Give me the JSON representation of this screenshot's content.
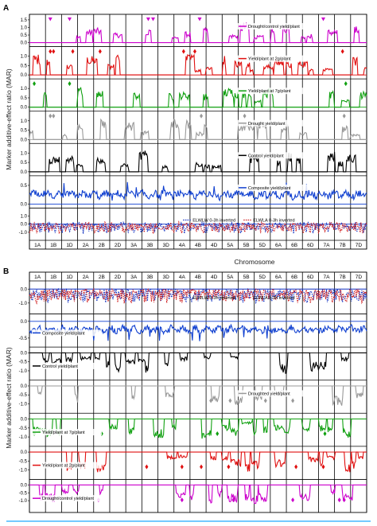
{
  "figure": {
    "panelA": "A",
    "panelB": "B",
    "ylabel": "Marker additive-effect ratio (MAR)",
    "xlabel": "Chromosome"
  },
  "chart_data": [
    {
      "type": "line",
      "panel": "A",
      "chromosomes": [
        "1A",
        "1B",
        "1D",
        "2A",
        "2B",
        "2D",
        "3A",
        "3B",
        "3D",
        "4A",
        "4B",
        "4D",
        "5A",
        "5B",
        "5D",
        "6A",
        "6B",
        "6D",
        "7A",
        "7B",
        "7D"
      ],
      "tracks": [
        {
          "name": "Drought/control yield/plant",
          "color": "#cc00cc",
          "ticks": [
            "1.5",
            "1.0",
            "0.5",
            "0.0"
          ],
          "ylim": [
            0,
            1.6
          ],
          "markers": [
            "1B",
            "1D",
            "3B",
            "3B",
            "4B",
            "7A"
          ],
          "marker_color": "#cc00cc",
          "marker_shape": "triangle-down"
        },
        {
          "name": "Yield/plant at 2g/plant",
          "color": "#e01010",
          "ticks": [
            "1.0",
            "0.5",
            "0.0"
          ],
          "ylim": [
            0,
            1.3
          ],
          "markers": [
            "1B",
            "1B",
            "1D",
            "2B",
            "4A",
            "4B",
            "7B"
          ],
          "marker_color": "#e01010",
          "marker_shape": "diamond"
        },
        {
          "name": "Yield/plant at 7g/plant",
          "color": "#10a010",
          "ticks": [
            "1.0",
            "0.5",
            "0.0"
          ],
          "ylim": [
            0,
            1.3
          ],
          "markers": [
            "1A",
            "1D",
            "7B"
          ],
          "marker_color": "#10a010",
          "marker_shape": "diamond"
        },
        {
          "name": "Drought yield/plant",
          "color": "#999999",
          "ticks": [
            "1.0",
            "0.5",
            "0.0"
          ],
          "ylim": [
            0,
            1.3
          ],
          "markers": [
            "1B",
            "1B",
            "4B",
            "5B",
            "7B"
          ],
          "marker_color": "#999999",
          "marker_shape": "diamond"
        },
        {
          "name": "Control yield/plant",
          "color": "#000000",
          "ticks": [
            "1.0",
            "0.5",
            "0.0"
          ],
          "ylim": [
            0,
            1.3
          ],
          "markers": [],
          "marker_color": "#000000",
          "marker_shape": "diamond"
        },
        {
          "name": "Composite yield/plant",
          "color": "#1040d0",
          "ticks": [
            "0.5",
            "0.0"
          ],
          "ylim": [
            0,
            0.65
          ],
          "markers": [],
          "marker_color": "#1040d0",
          "marker_shape": "diamond"
        },
        {
          "name": "ELWLW 0-3h inverted",
          "name2": "ELWLA 0-3h inverted",
          "color": "#1030c0",
          "color2": "#d02020",
          "ticks": [
            "-1.0",
            "0.0",
            "1.0"
          ],
          "ylim": [
            -1.5,
            1.5
          ],
          "markers": [],
          "marker_color": "#000",
          "marker_shape": "diamond"
        }
      ]
    },
    {
      "type": "line",
      "panel": "B",
      "chromosomes": [
        "1A",
        "1B",
        "1D",
        "2A",
        "2B",
        "2D",
        "3A",
        "3B",
        "3D",
        "4A",
        "4B",
        "4D",
        "5A",
        "5B",
        "5D",
        "6A",
        "6B",
        "6D",
        "7A",
        "7B",
        "7D"
      ],
      "tracks": [
        {
          "name": "ELWLW 0-3h inverted",
          "name2": "ELWLA 0-3h inverted",
          "color": "#1030c0",
          "color2": "#d02020",
          "ticks": [
            "0.0",
            "-1.0"
          ],
          "ylim": [
            -1.5,
            0.3
          ],
          "markers": [],
          "marker_color": "#000",
          "marker_shape": "diamond"
        },
        {
          "name": "Composite yield/plant",
          "color": "#1040d0",
          "ticks": [
            "0.0",
            "-0.5"
          ],
          "ylim": [
            -0.65,
            0.1
          ],
          "markers": [],
          "marker_color": "#1040d0",
          "marker_shape": "diamond"
        },
        {
          "name": "Control yield/plant",
          "color": "#000000",
          "ticks": [
            "0.0",
            "-0.5",
            "-1.0"
          ],
          "ylim": [
            -1.3,
            0.1
          ],
          "markers": [],
          "marker_color": "#000",
          "marker_shape": "diamond"
        },
        {
          "name": "Droughted yield/plant",
          "color": "#999999",
          "ticks": [
            "0.0",
            "-0.5",
            "-1.0"
          ],
          "ylim": [
            -1.3,
            0.1
          ],
          "markers": [
            "4D",
            "5A",
            "5D",
            "6B"
          ],
          "marker_color": "#999999",
          "marker_shape": "diamond"
        },
        {
          "name": "Yield/plant at 7g/plant",
          "color": "#10a010",
          "ticks": [
            "0.0",
            "-0.5",
            "-1.0"
          ],
          "ylim": [
            -1.3,
            0.1
          ],
          "markers": [
            "1A",
            "2B",
            "4D",
            "7A"
          ],
          "marker_color": "#10a010",
          "marker_shape": "diamond"
        },
        {
          "name": "Yield/plant at 2g/plant",
          "color": "#e01010",
          "ticks": [
            "0.0",
            "-0.5",
            "-1.0"
          ],
          "ylim": [
            -1.3,
            0.1
          ],
          "markers": [
            "3B",
            "4A",
            "4B",
            "5A",
            "6B",
            "7A"
          ],
          "marker_color": "#e01010",
          "marker_shape": "diamond"
        },
        {
          "name": "Drought/control yield/plant",
          "color": "#cc00cc",
          "ticks": [
            "0.0",
            "-0.5",
            "-1.0"
          ],
          "ylim": [
            -1.5,
            0.1
          ],
          "markers": [
            "2B",
            "4A",
            "5A",
            "6B",
            "7B",
            "7B"
          ],
          "marker_color": "#cc00cc",
          "marker_shape": "diamond"
        }
      ]
    }
  ]
}
